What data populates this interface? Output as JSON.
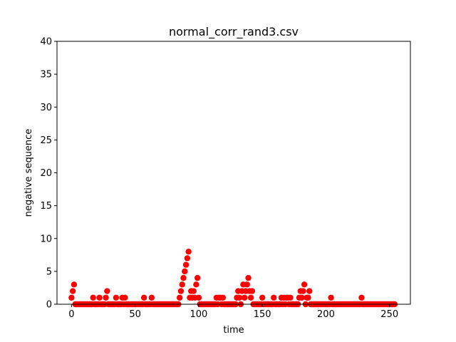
{
  "chart_data": {
    "type": "scatter",
    "title": "normal_corr_rand3.csv",
    "xlabel": "time",
    "ylabel": "negative sequence",
    "xlim": [
      -11.4,
      266.4
    ],
    "ylim": [
      0,
      40
    ],
    "xticks": [
      0,
      50,
      100,
      150,
      200,
      250
    ],
    "yticks": [
      0,
      5,
      10,
      15,
      20,
      25,
      30,
      35,
      40
    ],
    "grid": false,
    "marker_color": "#ff0000",
    "series": [
      {
        "x": [
          0,
          1,
          2,
          3,
          4,
          5,
          6,
          7,
          8,
          9,
          10,
          11,
          12,
          13,
          14,
          15,
          16,
          17,
          18,
          19,
          20,
          21,
          22,
          23,
          24,
          25,
          26,
          27,
          28,
          29,
          30,
          31,
          32,
          33,
          34,
          35,
          36,
          37,
          38,
          39,
          40,
          41,
          42,
          43,
          44,
          45,
          46,
          47,
          48,
          49,
          50,
          51,
          52,
          53,
          54,
          55,
          56,
          57,
          58,
          59,
          60,
          61,
          62,
          63,
          64,
          65,
          66,
          67,
          68,
          69,
          70,
          71,
          72,
          73,
          74,
          75,
          76,
          77,
          78,
          79,
          80,
          81,
          82,
          83,
          84,
          85,
          86,
          87,
          88,
          89,
          90,
          91,
          92,
          93,
          94,
          95,
          96,
          97,
          98,
          99,
          100,
          101,
          102,
          103,
          104,
          105,
          106,
          107,
          108,
          109,
          110,
          111,
          112,
          113,
          114,
          115,
          116,
          117,
          118,
          119,
          120,
          121,
          122,
          123,
          124,
          125,
          126,
          127,
          128,
          129,
          130,
          131,
          132,
          133,
          134,
          135,
          136,
          137,
          138,
          139,
          140,
          141,
          142,
          143,
          144,
          145,
          146,
          147,
          148,
          149,
          150,
          151,
          152,
          153,
          154,
          155,
          156,
          157,
          158,
          159,
          160,
          161,
          162,
          163,
          164,
          165,
          166,
          167,
          168,
          169,
          170,
          171,
          172,
          173,
          174,
          175,
          176,
          177,
          178,
          179,
          180,
          181,
          182,
          183,
          184,
          185,
          186,
          187,
          188,
          189,
          190,
          191,
          192,
          193,
          194,
          195,
          196,
          197,
          198,
          199,
          200,
          201,
          202,
          203,
          204,
          205,
          206,
          207,
          208,
          209,
          210,
          211,
          212,
          213,
          214,
          215,
          216,
          217,
          218,
          219,
          220,
          221,
          222,
          223,
          224,
          225,
          226,
          227,
          228,
          229,
          230,
          231,
          232,
          233,
          234,
          235,
          236,
          237,
          238,
          239,
          240,
          241,
          242,
          243,
          244,
          245,
          246,
          247,
          248,
          249,
          250,
          251,
          252,
          253,
          254
        ],
        "y": [
          1,
          2,
          3,
          0,
          0,
          0,
          0,
          0,
          0,
          0,
          0,
          0,
          0,
          0,
          0,
          0,
          0,
          1,
          0,
          0,
          0,
          0,
          1,
          0,
          0,
          0,
          0,
          1,
          2,
          0,
          0,
          0,
          0,
          0,
          0,
          1,
          0,
          0,
          0,
          0,
          1,
          0,
          1,
          0,
          0,
          0,
          0,
          0,
          0,
          0,
          0,
          0,
          0,
          0,
          0,
          0,
          0,
          1,
          0,
          0,
          0,
          0,
          0,
          1,
          0,
          0,
          0,
          0,
          0,
          0,
          0,
          0,
          0,
          0,
          0,
          0,
          0,
          0,
          0,
          0,
          0,
          0,
          0,
          0,
          0,
          1,
          2,
          3,
          4,
          5,
          6,
          7,
          8,
          1,
          2,
          1,
          2,
          1,
          3,
          4,
          1,
          0,
          0,
          0,
          0,
          0,
          0,
          0,
          0,
          0,
          0,
          0,
          0,
          0,
          1,
          0,
          1,
          1,
          0,
          1,
          0,
          0,
          0,
          0,
          0,
          0,
          0,
          0,
          0,
          0,
          1,
          2,
          1,
          0,
          2,
          3,
          1,
          2,
          3,
          4,
          2,
          1,
          2,
          0,
          0,
          0,
          0,
          0,
          0,
          0,
          1,
          0,
          0,
          0,
          0,
          0,
          0,
          0,
          0,
          1,
          0,
          0,
          0,
          0,
          0,
          1,
          0,
          1,
          0,
          1,
          1,
          0,
          1,
          0,
          0,
          0,
          0,
          0,
          0,
          1,
          2,
          1,
          2,
          3,
          0,
          1,
          1,
          2,
          0,
          0,
          0,
          0,
          0,
          0,
          0,
          0,
          0,
          0,
          0,
          0,
          0,
          0,
          0,
          0,
          1,
          0,
          0,
          0,
          0,
          0,
          0,
          0,
          0,
          0,
          0,
          0,
          0,
          0,
          0,
          0,
          0,
          0,
          0,
          0,
          0,
          0,
          0,
          0,
          1,
          0,
          0,
          0,
          0,
          0,
          0,
          0,
          0,
          0,
          0,
          0,
          0,
          0,
          0,
          0,
          0,
          0,
          0,
          0,
          0,
          0,
          0,
          0,
          0,
          0,
          0
        ]
      }
    ]
  }
}
